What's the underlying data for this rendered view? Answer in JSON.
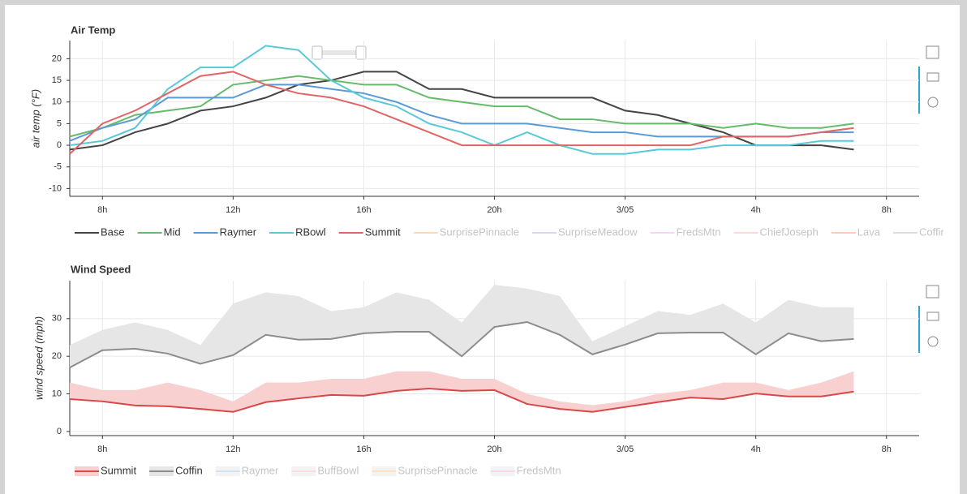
{
  "chart_data": [
    {
      "type": "line",
      "title": "Air Temp",
      "ylabel": "air temp (°F)",
      "x": [
        7,
        8,
        9,
        10,
        11,
        12,
        13,
        14,
        15,
        16,
        17,
        18,
        19,
        20,
        21,
        22,
        23,
        24,
        25,
        26,
        27,
        28,
        29,
        30,
        31
      ],
      "xlim": [
        7,
        33
      ],
      "xticks": [
        {
          "value": 8,
          "label": "8h"
        },
        {
          "value": 12,
          "label": "12h"
        },
        {
          "value": 16,
          "label": "16h"
        },
        {
          "value": 20,
          "label": "20h"
        },
        {
          "value": 24,
          "label": "3/05"
        },
        {
          "value": 28,
          "label": "4h"
        },
        {
          "value": 32,
          "label": "8h"
        }
      ],
      "ylim": [
        -11.8,
        24.2
      ],
      "yticks": [
        -10,
        -5,
        0,
        5,
        10,
        15,
        20
      ],
      "grid": true,
      "series": [
        {
          "name": "Base",
          "color": "#444444",
          "values": [
            -1,
            0,
            3,
            5,
            8,
            9,
            11,
            14,
            15,
            17,
            17,
            13,
            13,
            11,
            11,
            11,
            11,
            8,
            7,
            5,
            3,
            0,
            0,
            0,
            -1
          ]
        },
        {
          "name": "Mid",
          "color": "#66bb6a",
          "values": [
            2,
            4,
            7,
            8,
            9,
            14,
            15,
            16,
            15,
            14,
            14,
            11,
            10,
            9,
            9,
            6,
            6,
            5,
            5,
            5,
            4,
            5,
            4,
            4,
            5
          ]
        },
        {
          "name": "Raymer",
          "color": "#5b9bd5",
          "values": [
            1,
            4,
            6,
            11,
            11,
            11,
            14,
            14,
            13,
            12,
            10,
            7,
            5,
            5,
            5,
            4,
            3,
            3,
            2,
            2,
            2,
            2,
            2,
            3,
            3
          ]
        },
        {
          "name": "RBowl",
          "color": "#5bc8d8",
          "values": [
            0,
            1,
            4,
            13,
            18,
            18,
            23,
            22,
            15,
            11,
            9,
            5,
            3,
            0,
            3,
            0,
            -2,
            -2,
            -1,
            -1,
            0,
            0,
            0,
            1,
            1
          ]
        },
        {
          "name": "Summit",
          "color": "#e06666",
          "values": [
            -2,
            5,
            8,
            12,
            16,
            17,
            14,
            12,
            11,
            9,
            6,
            3,
            0,
            0,
            0,
            0,
            0,
            0,
            0,
            0,
            2,
            2,
            2,
            3,
            4
          ]
        }
      ],
      "hidden_series": [
        {
          "name": "SurprisePinnacle",
          "color": "#ffd9b3"
        },
        {
          "name": "SurpriseMeadow",
          "color": "#ddd5f0"
        },
        {
          "name": "FredsMtn",
          "color": "#f8d5ee"
        },
        {
          "name": "ChiefJoseph",
          "color": "#fbd9d9"
        },
        {
          "name": "Lava",
          "color": "#ffccb3"
        },
        {
          "name": "Coffin",
          "color": "#dddddd"
        }
      ]
    },
    {
      "type": "line",
      "title": "Wind Speed",
      "ylabel": "wind speed (mph)",
      "x": [
        7,
        8,
        9,
        10,
        11,
        12,
        13,
        14,
        15,
        16,
        17,
        18,
        19,
        20,
        21,
        22,
        23,
        24,
        25,
        26,
        27,
        28,
        29,
        30,
        31
      ],
      "xlim": [
        7,
        33
      ],
      "xticks": [
        {
          "value": 8,
          "label": "8h"
        },
        {
          "value": 12,
          "label": "12h"
        },
        {
          "value": 16,
          "label": "16h"
        },
        {
          "value": 20,
          "label": "20h"
        },
        {
          "value": 24,
          "label": "3/05"
        },
        {
          "value": 28,
          "label": "4h"
        },
        {
          "value": 32,
          "label": "8h"
        }
      ],
      "ylim": [
        -1.1,
        40.1
      ],
      "yticks": [
        0,
        10,
        20,
        30
      ],
      "grid": true,
      "series": [
        {
          "name": "Summit",
          "color": "#d94848",
          "band_color": "#f8d0d0",
          "values": [
            8.6,
            8,
            6.9,
            6.7,
            6,
            5.2,
            7.8,
            8.8,
            9.7,
            9.5,
            10.8,
            11.4,
            10.8,
            11,
            7.3,
            6,
            5.2,
            6.5,
            7.8,
            9,
            8.6,
            10.1,
            9.3,
            9.3,
            10.6
          ],
          "max": [
            13,
            11,
            11,
            13,
            11,
            8,
            13,
            13,
            14,
            14,
            16,
            16,
            14,
            14,
            10,
            8,
            7,
            8,
            10,
            11,
            13,
            13,
            11,
            13,
            16
          ]
        },
        {
          "name": "Coffin",
          "color": "#8c8c8c",
          "band_color": "#e6e6e6",
          "values": [
            17,
            21.6,
            22,
            20.7,
            18,
            20.3,
            25.7,
            24.4,
            24.6,
            26.1,
            26.5,
            26.5,
            20,
            27.8,
            29.1,
            25.7,
            20.5,
            23.1,
            26.1,
            26.3,
            26.3,
            20.5,
            26.1,
            24,
            24.6
          ],
          "max": [
            23,
            27,
            29,
            27,
            23,
            34,
            37,
            36,
            32,
            33,
            37,
            35,
            29,
            39,
            38,
            36,
            24,
            28,
            32,
            31,
            34,
            29,
            35,
            33,
            33
          ]
        }
      ],
      "hidden_series": [
        {
          "name": "Raymer",
          "color": "#cfe3f5"
        },
        {
          "name": "BuffBowl",
          "color": "#fbdcdc"
        },
        {
          "name": "SurprisePinnacle",
          "color": "#ffe3bf"
        },
        {
          "name": "FredsMtn",
          "color": "#f8d5ee"
        }
      ]
    }
  ]
}
